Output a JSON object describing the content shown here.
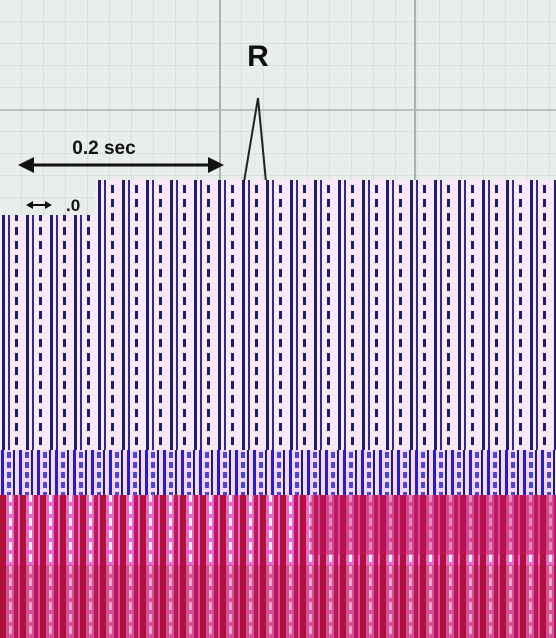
{
  "labels": {
    "peak": "R",
    "interval": "0.2 sec",
    "small_interval": ".0"
  }
}
